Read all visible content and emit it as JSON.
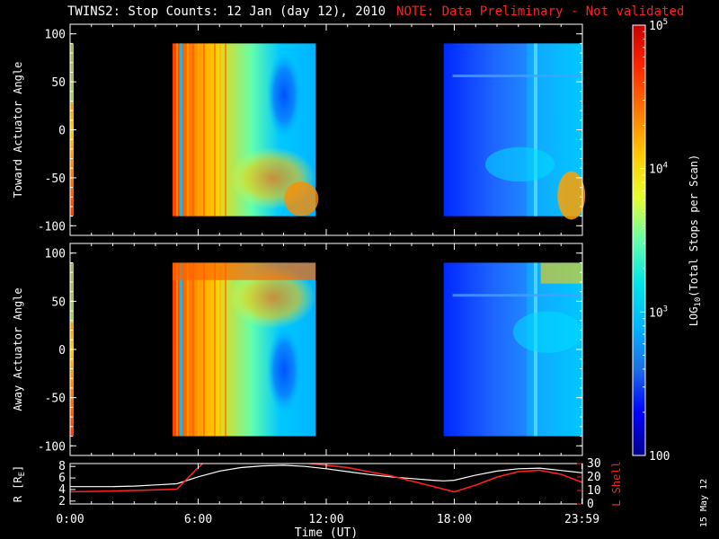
{
  "title": "TWINS2: Stop Counts: 12 Jan (day  12), 2010",
  "note": "NOTE: Data Preliminary - Not validated",
  "stamp": "15 May 12",
  "colors": {
    "note": "#ff2020",
    "orbit_r": "#ffffff",
    "orbit_l": "#ff2020"
  },
  "chart_data": [
    {
      "type": "heatmap",
      "ylabel": "Toward Actuator Angle",
      "yticks": [
        "-100",
        "-50",
        "0",
        "50",
        "100"
      ],
      "ylim": [
        -110,
        110
      ],
      "xlim_hours": [
        0,
        24
      ],
      "data_angle_range": [
        -90,
        90
      ],
      "data_blocks_hours": [
        [
          0,
          0.17
        ],
        [
          4.8,
          11.5
        ],
        [
          17.5,
          24
        ]
      ],
      "background": "#000000"
    },
    {
      "type": "heatmap",
      "ylabel": "Away Actuator Angle",
      "yticks": [
        "-100",
        "-50",
        "0",
        "50",
        "100"
      ],
      "ylim": [
        -110,
        110
      ],
      "xlim_hours": [
        0,
        24
      ],
      "data_angle_range": [
        -90,
        90
      ],
      "data_blocks_hours": [
        [
          0,
          0.17
        ],
        [
          4.8,
          11.5
        ],
        [
          17.5,
          24
        ]
      ],
      "background": "#000000"
    },
    {
      "type": "line",
      "ylabel_left": "R [R",
      "ylabel_left_sub": "E",
      "ylabel_left_end": "]",
      "ylabel_right": "L Shell",
      "yticks_left": [
        "2",
        "4",
        "6",
        "8"
      ],
      "yticks_right": [
        "0",
        "10",
        "20",
        "30"
      ],
      "ylim_left": [
        1.5,
        8.5
      ],
      "ylim_right": [
        0,
        30
      ],
      "xticks": [
        "0:00",
        "6:00",
        "12:00",
        "18:00",
        "23:59"
      ],
      "xticks_hours": [
        0,
        6,
        12,
        18,
        23.98
      ],
      "xlabel": "Time (UT)",
      "series": [
        {
          "axis": "left",
          "x": [
            0,
            1,
            2,
            3,
            4,
            5,
            6,
            7,
            8,
            9,
            10,
            11,
            12,
            13,
            14,
            15,
            16,
            17,
            17.5,
            18,
            19,
            20,
            21,
            22,
            23,
            24
          ],
          "y": [
            4.5,
            4.5,
            4.5,
            4.6,
            4.8,
            5.0,
            6.2,
            7.2,
            7.8,
            8.1,
            8.2,
            8.0,
            7.6,
            7.1,
            6.6,
            6.2,
            5.9,
            5.6,
            5.5,
            5.6,
            6.5,
            7.2,
            7.6,
            7.7,
            7.3,
            6.9
          ]
        },
        {
          "axis": "right",
          "x": [
            0,
            1,
            2,
            3,
            4,
            5,
            6,
            6.25
          ],
          "y": [
            9,
            9.3,
            9.6,
            10,
            10.5,
            11,
            27,
            30.5
          ]
        },
        {
          "axis": "right",
          "x": [
            11,
            13,
            15,
            17,
            18,
            19,
            20,
            21,
            22,
            23,
            24
          ],
          "y": [
            30.5,
            27,
            21,
            13,
            9,
            14,
            20,
            24,
            25,
            22,
            16
          ]
        }
      ]
    }
  ],
  "colorbar": {
    "label_prefix": "LOG",
    "label_sub": "10",
    "label_suffix": "(Total Stops per Scan)",
    "tick_top_base": "10",
    "tick_top_exp": "5",
    "tick_mid_base": "10",
    "tick_mid_exp": "4",
    "tick_low_base": "10",
    "tick_low_exp": "3",
    "tick_bottom": "100",
    "range_log10": [
      2,
      5
    ],
    "colors": [
      "#00008b",
      "#0000ff",
      "#1e6ee6",
      "#00b4ff",
      "#00e6e6",
      "#64ffaa",
      "#e6ff2e",
      "#ffc800",
      "#ff7800",
      "#ff2800",
      "#c80000"
    ]
  }
}
